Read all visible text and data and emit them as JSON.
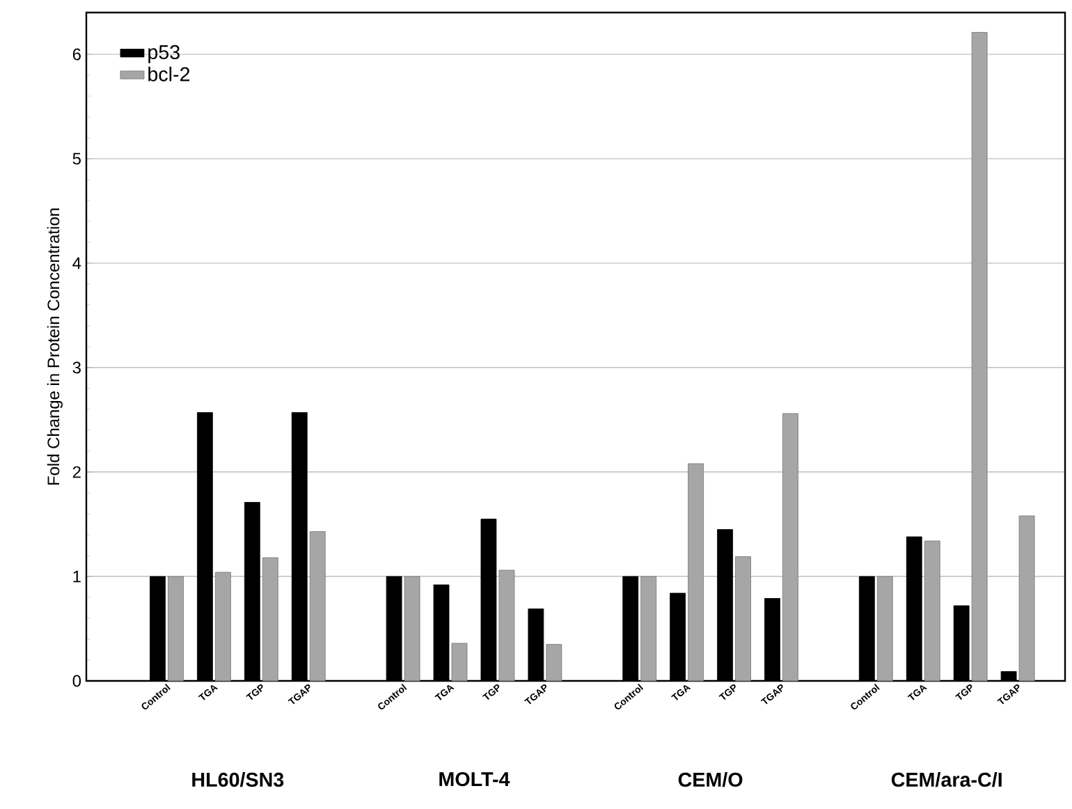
{
  "chart_data": {
    "type": "bar",
    "ylabel": "Fold Change in Protein Concentration",
    "categories": [
      "Control",
      "TGA",
      "TGP",
      "TGAP",
      null,
      "Control",
      "TGA",
      "TGP",
      "TGAP",
      null,
      "Control",
      "TGA",
      "TGP",
      "TGAP",
      null,
      "Control",
      "TGA",
      "TGP",
      "TGAP"
    ],
    "series": [
      {
        "name": "p53",
        "color": "#000000",
        "values": [
          1,
          2.57,
          1.71,
          2.57,
          null,
          1,
          0.92,
          1.55,
          0.69,
          null,
          1,
          0.84,
          1.45,
          0.79,
          null,
          1,
          1.38,
          0.72,
          0.09
        ]
      },
      {
        "name": "bcl-2",
        "color": "#a6a6a6",
        "values": [
          1,
          1.04,
          1.18,
          1.43,
          null,
          1,
          0.36,
          1.06,
          0.35,
          null,
          1,
          2.08,
          1.19,
          2.56,
          null,
          1,
          1.34,
          6.21,
          1.58
        ]
      }
    ],
    "annotations": [
      "HL60/SN3",
      "MOLT-4",
      "CEM/O",
      "CEM/ara-C/I"
    ],
    "ylim": [
      0,
      6.4
    ],
    "yticks": [
      0,
      1,
      2,
      3,
      4,
      5,
      6
    ],
    "grid": "y",
    "legend": "top left"
  }
}
